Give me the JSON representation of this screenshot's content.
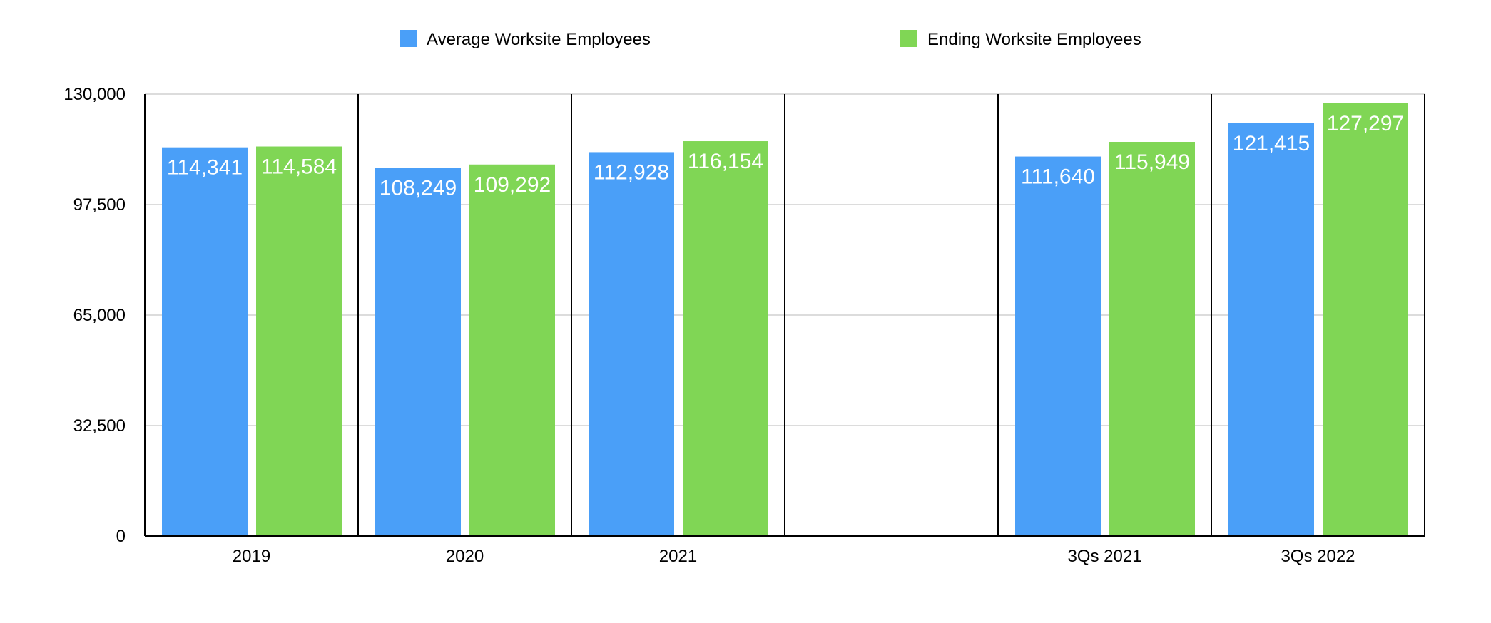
{
  "colors": {
    "average": "#4a9ff8",
    "ending": "#80d655",
    "grid": "#c8c8c8",
    "axis": "#000000"
  },
  "legend": {
    "placement": "top",
    "items": [
      {
        "label": "Average Worksite Employees",
        "color": "#4a9ff8"
      },
      {
        "label": "Ending Worksite Employees",
        "color": "#80d655"
      }
    ]
  },
  "chart_data": {
    "type": "bar",
    "title": "",
    "xlabel": "",
    "ylabel": "",
    "ylim": [
      0,
      130000
    ],
    "yticks": [
      0,
      32500,
      65000,
      97500,
      130000
    ],
    "ytick_labels": [
      "0",
      "32,500",
      "65,000",
      "97,500",
      "130,000"
    ],
    "grid": true,
    "categories": [
      "2019",
      "2020",
      "2021",
      "",
      "3Qs 2021",
      "3Qs 2022"
    ],
    "series": [
      {
        "name": "Average Worksite Employees",
        "values": [
          114341,
          108249,
          112928,
          null,
          111640,
          121415
        ],
        "labels": [
          "114,341",
          "108,249",
          "112,928",
          "",
          "111,640",
          "121,415"
        ]
      },
      {
        "name": "Ending Worksite Employees",
        "values": [
          114584,
          109292,
          116154,
          null,
          115949,
          127297
        ],
        "labels": [
          "114,584",
          "109,292",
          "116,154",
          "",
          "115,949",
          "127,297"
        ]
      }
    ]
  }
}
